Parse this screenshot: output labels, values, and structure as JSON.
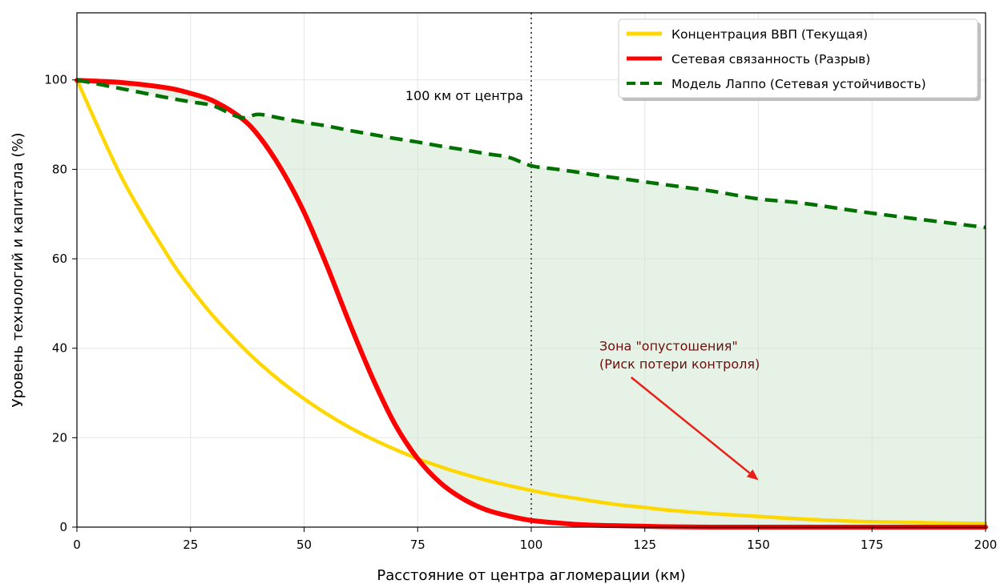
{
  "chart_data": {
    "type": "line",
    "xlabel": "Расстояние от центра агломерации (км)",
    "ylabel": "Уровень технологий и капитала (%)",
    "xlim": [
      0,
      200
    ],
    "ylim": [
      0,
      115
    ],
    "xticks": [
      0,
      25,
      50,
      75,
      100,
      125,
      150,
      175,
      200
    ],
    "yticks": [
      0,
      20,
      40,
      60,
      80,
      100
    ],
    "grid": true,
    "legend_position": "top-right",
    "x": [
      0,
      10,
      20,
      25,
      30,
      36,
      40,
      45,
      50,
      55,
      60,
      65,
      70,
      75,
      80,
      85,
      90,
      95,
      100,
      105,
      110,
      115,
      120,
      125,
      130,
      140,
      150,
      160,
      175,
      200
    ],
    "series": [
      {
        "name": "Концентрация ВВП (Текущая)",
        "color": "#FFD700",
        "style": "solid",
        "values": [
          100,
          77.9,
          60.7,
          53.5,
          47.2,
          40.7,
          36.8,
          32.5,
          28.7,
          25.3,
          22.3,
          19.7,
          17.4,
          15.3,
          13.5,
          11.9,
          10.5,
          9.3,
          8.2,
          7.2,
          6.4,
          5.6,
          4.9,
          4.4,
          3.8,
          3.0,
          2.4,
          1.8,
          1.2,
          0.8
        ]
      },
      {
        "name": "Сетевая связанность (Разрыв)",
        "color": "#FF0000",
        "style": "solid",
        "values": [
          99.9,
          99.4,
          98.2,
          97,
          95.3,
          91.6,
          87.5,
          80,
          70.4,
          58.5,
          45.6,
          33.5,
          23,
          15.3,
          9.9,
          6.3,
          3.9,
          2.5,
          1.5,
          1.0,
          0.6,
          0.4,
          0.3,
          0.2,
          0.1,
          0,
          0,
          0,
          0,
          0
        ]
      },
      {
        "name": "Модель Лаппо (Сетевая устойчивость)",
        "color": "#007000",
        "style": "dashed",
        "values": [
          100,
          98,
          96,
          95.1,
          94.2,
          91.6,
          92.3,
          91.4,
          90.5,
          89.7,
          88.7,
          87.8,
          86.9,
          86.1,
          85.2,
          84.4,
          83.5,
          82.7,
          80.8,
          80.1,
          79.4,
          78.6,
          77.9,
          77.2,
          76.5,
          75.1,
          73.4,
          72.4,
          70.2,
          67.0
        ]
      }
    ],
    "vline": {
      "x": 100,
      "label": "100 км от центра"
    },
    "annotation": {
      "lines": [
        "Зона \"опустошения\"",
        "(Риск потери контроля)"
      ],
      "color": "#6b0f0f",
      "arrow_color": "#e8201a",
      "arrow_from": [
        122,
        33.5
      ],
      "arrow_to": [
        150,
        10.5
      ]
    },
    "fill": {
      "between": [
        1,
        2
      ],
      "color": "#cfe8cf"
    }
  }
}
